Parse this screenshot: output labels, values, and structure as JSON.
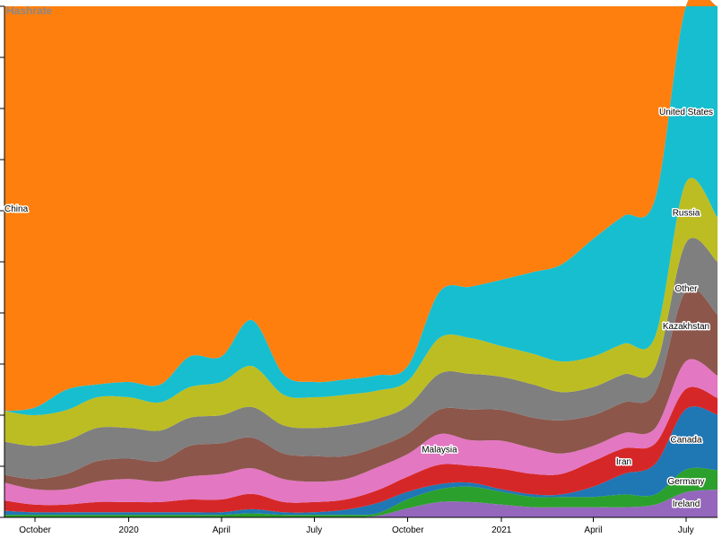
{
  "chart_data": {
    "type": "area",
    "stacked": true,
    "offset": "expand",
    "title": "Hashrate",
    "x": [
      "2019-09-01",
      "2019-10-01",
      "2019-11-01",
      "2019-12-01",
      "2020-01-01",
      "2020-02-01",
      "2020-03-01",
      "2020-04-01",
      "2020-05-01",
      "2020-06-01",
      "2020-07-01",
      "2020-08-01",
      "2020-09-01",
      "2020-10-01",
      "2020-11-01",
      "2020-12-01",
      "2021-01-01",
      "2021-02-01",
      "2021-03-01",
      "2021-04-01",
      "2021-05-01",
      "2021-06-01",
      "2021-07-01",
      "2021-08-01"
    ],
    "x_ticks": [
      "October",
      "2020",
      "April",
      "July",
      "October",
      "2021",
      "April",
      "July"
    ],
    "x_tick_dates": [
      "2019-10-01",
      "2020-01-01",
      "2020-04-01",
      "2020-07-01",
      "2020-10-01",
      "2021-01-01",
      "2021-04-01",
      "2021-07-01"
    ],
    "ylim": [
      0,
      1
    ],
    "series": [
      {
        "name": "Ireland",
        "color": "#9467bd",
        "values": [
          0.0,
          0.0,
          0.0,
          0.0,
          0.0,
          0.0,
          0.0,
          0.0,
          0.0,
          0.0,
          0.0,
          0.0,
          0.003,
          0.018,
          0.03,
          0.03,
          0.025,
          0.02,
          0.02,
          0.02,
          0.02,
          0.025,
          0.05,
          0.05
        ]
      },
      {
        "name": "Germany",
        "color": "#2ca02c",
        "values": [
          0.005,
          0.005,
          0.005,
          0.005,
          0.005,
          0.005,
          0.005,
          0.005,
          0.008,
          0.005,
          0.005,
          0.005,
          0.005,
          0.018,
          0.025,
          0.03,
          0.025,
          0.02,
          0.02,
          0.02,
          0.025,
          0.02,
          0.045,
          0.035
        ]
      },
      {
        "name": "Canada",
        "color": "#1f77b4",
        "values": [
          0.008,
          0.005,
          0.005,
          0.005,
          0.005,
          0.005,
          0.005,
          0.005,
          0.008,
          0.005,
          0.005,
          0.01,
          0.02,
          0.015,
          0.01,
          0.008,
          0.005,
          0.005,
          0.005,
          0.02,
          0.04,
          0.06,
          0.12,
          0.1
        ]
      },
      {
        "name": "Iran",
        "color": "#d62728",
        "values": [
          0.02,
          0.015,
          0.015,
          0.02,
          0.02,
          0.02,
          0.025,
          0.025,
          0.03,
          0.02,
          0.02,
          0.02,
          0.025,
          0.03,
          0.038,
          0.033,
          0.04,
          0.04,
          0.04,
          0.05,
          0.05,
          0.04,
          0.04,
          0.03
        ]
      },
      {
        "name": "Malaysia",
        "color": "#e377c2",
        "values": [
          0.035,
          0.03,
          0.03,
          0.04,
          0.045,
          0.04,
          0.045,
          0.05,
          0.05,
          0.045,
          0.04,
          0.04,
          0.045,
          0.045,
          0.06,
          0.05,
          0.055,
          0.05,
          0.04,
          0.03,
          0.03,
          0.03,
          0.055,
          0.04
        ]
      },
      {
        "name": "Kazakhstan",
        "color": "#8c564b",
        "values": [
          0.015,
          0.02,
          0.03,
          0.04,
          0.04,
          0.04,
          0.06,
          0.06,
          0.06,
          0.05,
          0.05,
          0.045,
          0.04,
          0.04,
          0.048,
          0.06,
          0.06,
          0.06,
          0.065,
          0.06,
          0.06,
          0.07,
          0.14,
          0.11
        ]
      },
      {
        "name": "Other",
        "color": "#7f7f7f",
        "values": [
          0.065,
          0.065,
          0.065,
          0.065,
          0.06,
          0.06,
          0.055,
          0.055,
          0.06,
          0.055,
          0.055,
          0.06,
          0.055,
          0.055,
          0.07,
          0.07,
          0.065,
          0.065,
          0.055,
          0.055,
          0.055,
          0.05,
          0.095,
          0.095
        ]
      },
      {
        "name": "Russia",
        "color": "#bcbd22",
        "values": [
          0.06,
          0.06,
          0.06,
          0.06,
          0.06,
          0.055,
          0.06,
          0.065,
          0.08,
          0.06,
          0.06,
          0.06,
          0.055,
          0.05,
          0.07,
          0.07,
          0.06,
          0.06,
          0.06,
          0.06,
          0.06,
          0.06,
          0.12,
          0.08
        ]
      },
      {
        "name": "United States",
        "color": "#17becf",
        "values": [
          0.0,
          0.015,
          0.04,
          0.025,
          0.03,
          0.035,
          0.06,
          0.05,
          0.09,
          0.04,
          0.03,
          0.03,
          0.03,
          0.03,
          0.09,
          0.1,
          0.13,
          0.16,
          0.19,
          0.23,
          0.25,
          0.27,
          0.35,
          0.38
        ]
      },
      {
        "name": "China",
        "color": "#ff7f0e",
        "values": [
          0.792,
          0.785,
          0.75,
          0.74,
          0.735,
          0.74,
          0.685,
          0.685,
          0.614,
          0.72,
          0.735,
          0.73,
          0.722,
          0.714,
          0.559,
          0.549,
          0.535,
          0.52,
          0.505,
          0.455,
          0.41,
          0.375,
          0.0,
          0.0
        ]
      }
    ]
  }
}
